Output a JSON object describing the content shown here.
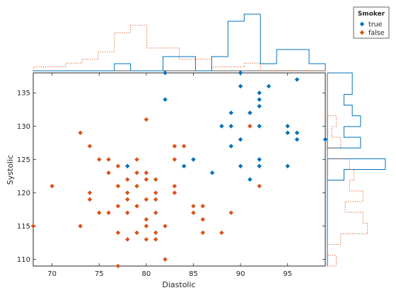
{
  "chart_data": {
    "type": "scatter",
    "xlabel": "Diastolic",
    "ylabel": "Systolic",
    "xlim": [
      68,
      99
    ],
    "ylim": [
      109,
      138
    ],
    "xticks": [
      70,
      75,
      80,
      85,
      90,
      95
    ],
    "yticks": [
      110,
      115,
      120,
      125,
      130,
      135
    ],
    "grid": false,
    "marginal_histograms": true,
    "legend": {
      "title": "Smoker",
      "placement": "top-right, outside the axes",
      "entries": [
        "true",
        "false"
      ]
    },
    "colors": {
      "true": "#0072BD",
      "false": "#D95319",
      "axis": "#262626"
    },
    "series": [
      {
        "name": "true",
        "marker": "diamond",
        "points": [
          [
            82,
            138
          ],
          [
            90,
            138
          ],
          [
            82,
            134
          ],
          [
            96,
            137
          ],
          [
            90,
            136
          ],
          [
            92,
            135
          ],
          [
            93,
            136
          ],
          [
            92,
            134
          ],
          [
            92,
            133
          ],
          [
            89,
            132
          ],
          [
            91,
            132
          ],
          [
            88,
            130
          ],
          [
            89,
            130
          ],
          [
            92,
            130
          ],
          [
            95,
            130
          ],
          [
            95,
            129
          ],
          [
            96,
            129
          ],
          [
            90,
            128
          ],
          [
            96,
            128
          ],
          [
            99,
            128
          ],
          [
            89,
            127
          ],
          [
            85,
            125
          ],
          [
            92,
            125
          ],
          [
            84,
            124
          ],
          [
            90,
            124
          ],
          [
            92,
            124
          ],
          [
            95,
            124
          ],
          [
            78,
            124
          ],
          [
            87,
            123
          ],
          [
            91,
            122
          ]
        ]
      },
      {
        "name": "false",
        "marker": "diamond",
        "points": [
          [
            73,
            129
          ],
          [
            80,
            131
          ],
          [
            91,
            130
          ],
          [
            74,
            127
          ],
          [
            83,
            127
          ],
          [
            84,
            127
          ],
          [
            75,
            125
          ],
          [
            76,
            125
          ],
          [
            79,
            125
          ],
          [
            83,
            125
          ],
          [
            77,
            124
          ],
          [
            76,
            123
          ],
          [
            79,
            123
          ],
          [
            80,
            123
          ],
          [
            78,
            122
          ],
          [
            80,
            122
          ],
          [
            81,
            122
          ],
          [
            77,
            121
          ],
          [
            79,
            121
          ],
          [
            83,
            121
          ],
          [
            70,
            121
          ],
          [
            92,
            121
          ],
          [
            74,
            120
          ],
          [
            78,
            120
          ],
          [
            81,
            120
          ],
          [
            83,
            120
          ],
          [
            74,
            119
          ],
          [
            78,
            119
          ],
          [
            80,
            119
          ],
          [
            81,
            119
          ],
          [
            77,
            118
          ],
          [
            79,
            118
          ],
          [
            85,
            118
          ],
          [
            86,
            118
          ],
          [
            78,
            117
          ],
          [
            75,
            117
          ],
          [
            76,
            117
          ],
          [
            81,
            117
          ],
          [
            85,
            117
          ],
          [
            89,
            117
          ],
          [
            80,
            116
          ],
          [
            86,
            116
          ],
          [
            68,
            115
          ],
          [
            73,
            115
          ],
          [
            80,
            115
          ],
          [
            82,
            115
          ],
          [
            77,
            114
          ],
          [
            79,
            114
          ],
          [
            81,
            114
          ],
          [
            86,
            114
          ],
          [
            88,
            114
          ],
          [
            78,
            113
          ],
          [
            80,
            113
          ],
          [
            81,
            113
          ],
          [
            82,
            110
          ],
          [
            77,
            109
          ]
        ]
      }
    ]
  }
}
